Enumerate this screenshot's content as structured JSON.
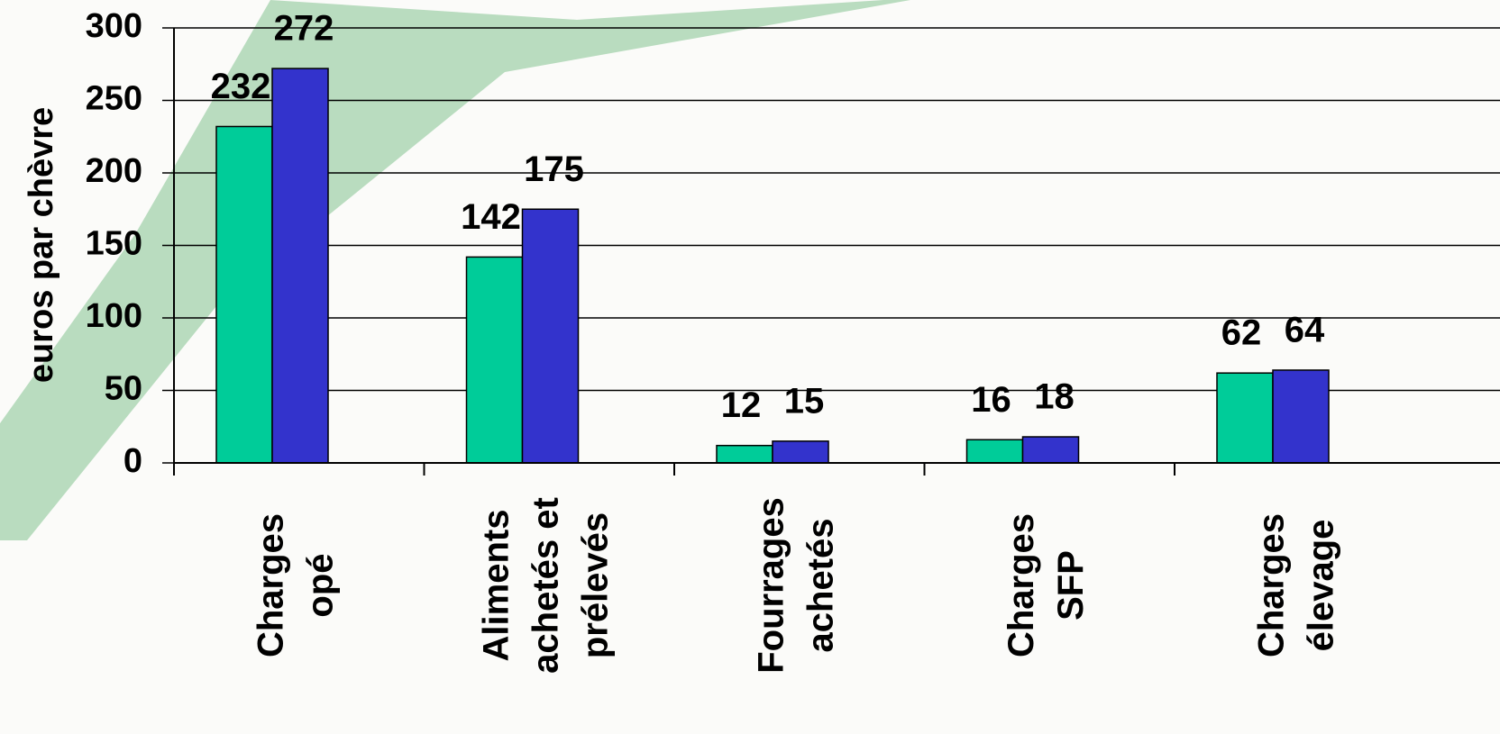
{
  "chart_data": {
    "type": "bar",
    "y_label": "euros par chèvre",
    "categories": [
      "Charges\nopé",
      "Aliments\nachetés et\nprélevés",
      "Fourrages\nachetés",
      "Charges\nSFP",
      "Charges\nélevage"
    ],
    "series": [
      {
        "color": "#00cc99",
        "values": [
          232,
          142,
          12,
          16,
          62
        ]
      },
      {
        "color": "#3333cc",
        "values": [
          272,
          175,
          15,
          18,
          64
        ]
      }
    ],
    "ylim": [
      0,
      300
    ],
    "yticks": [
      0,
      50,
      100,
      150,
      200,
      250,
      300
    ],
    "grid": true
  }
}
